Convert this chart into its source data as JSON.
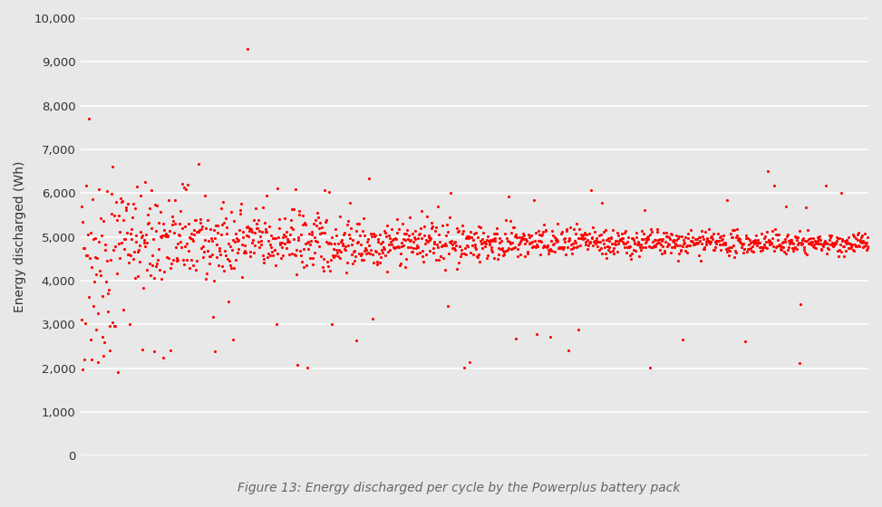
{
  "caption": "Figure 13: Energy discharged per cycle by the Powerplus battery pack",
  "ylabel": "Energy discharged (Wh)",
  "xlabel": "",
  "ylim": [
    0,
    10000
  ],
  "yticks": [
    0,
    1000,
    2000,
    3000,
    4000,
    5000,
    6000,
    7000,
    8000,
    9000,
    10000
  ],
  "ytick_labels": [
    "0",
    "1,000",
    "2,000",
    "3,000",
    "4,000",
    "5,000",
    "6,000",
    "7,000",
    "8,000",
    "9,000",
    "10,000"
  ],
  "xlim": [
    0,
    1400
  ],
  "dot_color": "#ff0000",
  "background_color": "#e8e8e8",
  "plot_bg_color": "#e8e8e8",
  "caption_fontsize": 10,
  "ylabel_fontsize": 10,
  "seed": 42,
  "n_points": 1400
}
